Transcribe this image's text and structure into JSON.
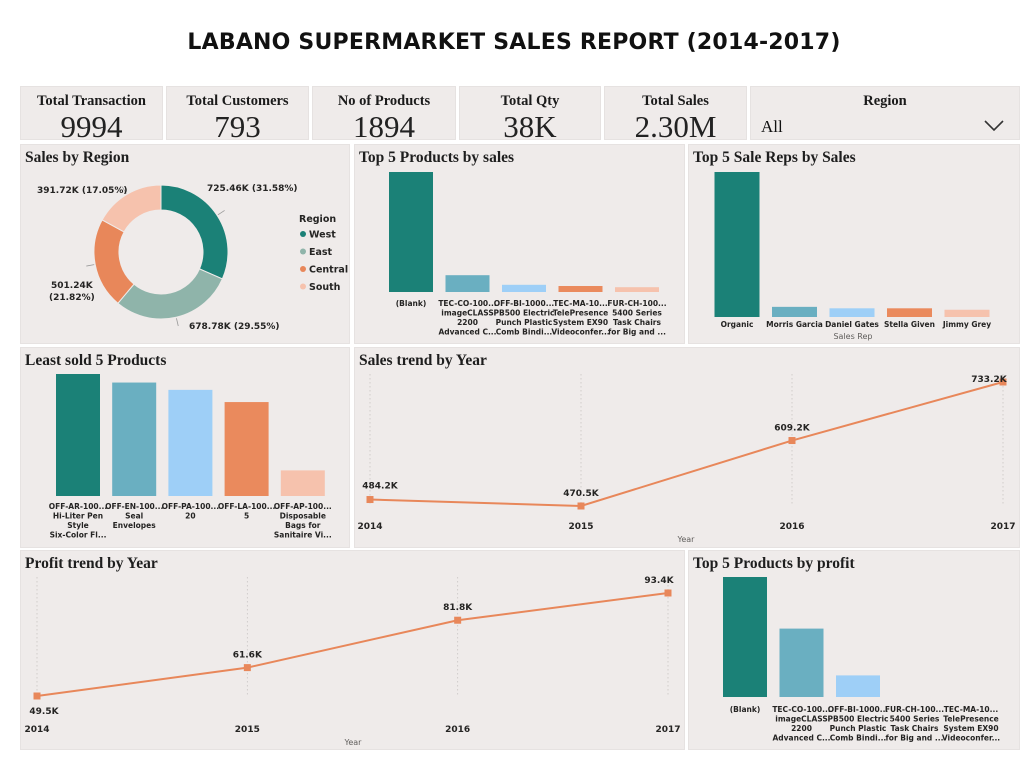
{
  "report": {
    "title": "LABANO SUPERMARKET SALES REPORT (2014-2017)"
  },
  "kpis": [
    {
      "label": "Total Transaction",
      "value": "9994"
    },
    {
      "label": "Total Customers",
      "value": "793"
    },
    {
      "label": "No of Products",
      "value": "1894"
    },
    {
      "label": "Total Qty",
      "value": "38K"
    },
    {
      "label": "Total Sales",
      "value": "2.30M"
    }
  ],
  "slicer": {
    "label": "Region",
    "value": "All",
    "icon": "chevron-down-icon"
  },
  "colors": {
    "teal": "#1b8177",
    "gray_teal": "#8fb4aa",
    "orange": "#e8875a",
    "peach": "#f6c2ad",
    "light_teal": "#6aafc1",
    "light_blue": "#9ecff7",
    "line": "#e8875a",
    "orange_bar": "#ea8a5d"
  },
  "chart_data": [
    {
      "id": "sales-by-region",
      "type": "pie",
      "title": "Sales by Region",
      "legend_title": "Region",
      "legend": "right",
      "slices": [
        {
          "name": "West",
          "value": 725.46,
          "label": "725.46K (31.58%)",
          "color": "#1b8177"
        },
        {
          "name": "East",
          "value": 678.78,
          "label": "678.78K (29.55%)",
          "color": "#8fb4aa"
        },
        {
          "name": "Central",
          "value": 501.24,
          "label": "501.24K (21.82%)",
          "color": "#e8875a"
        },
        {
          "name": "South",
          "value": 391.72,
          "label": "391.72K (17.05%)",
          "color": "#f6c2ad"
        }
      ]
    },
    {
      "id": "top5-products-sales",
      "type": "bar",
      "title": "Top 5 Products by sales",
      "categories": [
        [
          "(Blank)"
        ],
        [
          "TEC-CO-100...",
          "imageCLASS",
          "2200",
          "Advanced C..."
        ],
        [
          "OFF-BI-1000...",
          "PB500 Electric",
          "Punch Plastic",
          "Comb Bindi..."
        ],
        [
          "TEC-MA-10...",
          "TelePresence",
          "System EX90",
          "Videoconfer..."
        ],
        [
          "FUR-CH-100...",
          "5400 Series",
          "Task Chairs",
          "for Big and ..."
        ]
      ],
      "values": [
        100,
        14,
        6,
        5,
        4
      ],
      "colors": [
        "#1b8177",
        "#6aafc1",
        "#9ecff7",
        "#ea8a5d",
        "#f6c2ad"
      ]
    },
    {
      "id": "top5-sale-reps",
      "type": "bar",
      "title": "Top 5 Sale Reps by Sales",
      "xlabel": "Sales Rep",
      "categories": [
        [
          "Organic"
        ],
        [
          "Morris Garcia"
        ],
        [
          "Daniel Gates"
        ],
        [
          "Stella Given"
        ],
        [
          "Jimmy Grey"
        ]
      ],
      "values": [
        100,
        7,
        6,
        6,
        5
      ],
      "colors": [
        "#1b8177",
        "#6aafc1",
        "#9ecff7",
        "#ea8a5d",
        "#f6c2ad"
      ]
    },
    {
      "id": "least-sold-products",
      "type": "bar",
      "title": "Least sold 5 Products",
      "categories": [
        [
          "OFF-AR-100...",
          "Hi-Liter Pen",
          "Style",
          "Six-Color Fl..."
        ],
        [
          "OFF-EN-100...",
          "Seal",
          "Envelopes"
        ],
        [
          "OFF-PA-100...",
          "20"
        ],
        [
          "OFF-LA-100...",
          "5"
        ],
        [
          "OFF-AP-100...",
          "Disposable",
          "Bags for",
          "Sanitaire Vi..."
        ]
      ],
      "values": [
        100,
        93,
        87,
        77,
        21
      ],
      "colors": [
        "#1b8177",
        "#6aafc1",
        "#9ecff7",
        "#ea8a5d",
        "#f6c2ad"
      ]
    },
    {
      "id": "sales-trend",
      "type": "line",
      "title": "Sales trend by Year",
      "xlabel": "Year",
      "x": [
        "2014",
        "2015",
        "2016",
        "2017"
      ],
      "values": [
        484.2,
        470.5,
        609.2,
        733.2
      ],
      "labels": [
        "484.2K",
        "470.5K",
        "609.2K",
        "733.2K"
      ]
    },
    {
      "id": "profit-trend",
      "type": "line",
      "title": "Profit trend by Year",
      "xlabel": "Year",
      "x": [
        "2014",
        "2015",
        "2016",
        "2017"
      ],
      "values": [
        49.5,
        61.6,
        81.8,
        93.4
      ],
      "labels": [
        "49.5K",
        "61.6K",
        "81.8K",
        "93.4K"
      ]
    },
    {
      "id": "top5-products-profit",
      "type": "bar",
      "title": "Top 5 Products by profit",
      "categories": [
        [
          "(Blank)"
        ],
        [
          "TEC-CO-100...",
          "imageCLASS",
          "2200",
          "Advanced C..."
        ],
        [
          "OFF-BI-1000...",
          "PB500 Electric",
          "Punch Plastic",
          "Comb Bindi..."
        ],
        [
          "FUR-CH-100...",
          "5400 Series",
          "Task Chairs",
          "for Big and ..."
        ],
        [
          "TEC-MA-10...",
          "TelePresence",
          "System EX90",
          "Videoconfer..."
        ]
      ],
      "values": [
        100,
        57,
        18,
        0,
        0
      ],
      "colors": [
        "#1b8177",
        "#6aafc1",
        "#9ecff7",
        "#ea8a5d",
        "#f6c2ad"
      ]
    }
  ]
}
